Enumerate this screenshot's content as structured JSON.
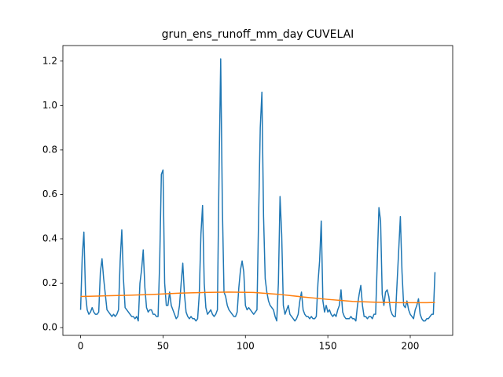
{
  "chart_data": {
    "type": "line",
    "title": "grun_ens_runoff_mm_day CUVELAI",
    "xlim": [
      -10.75,
      225.75
    ],
    "ylim": [
      -0.035,
      1.27
    ],
    "xticks": [
      0,
      50,
      100,
      150,
      200
    ],
    "yticks": [
      {
        "value": 0,
        "label": "0.0"
      },
      0.2,
      0.4,
      0.6,
      0.8,
      {
        "value": 1,
        "label": "1.0"
      },
      1.2
    ],
    "series": [
      {
        "color": "#1f77b4",
        "x": [
          0,
          1,
          2,
          3,
          4,
          5,
          6,
          7,
          8,
          9,
          10,
          11,
          12,
          13,
          14,
          15,
          16,
          17,
          18,
          19,
          20,
          21,
          22,
          23,
          24,
          25,
          26,
          27,
          28,
          29,
          30,
          31,
          32,
          33,
          34,
          35,
          36,
          37,
          38,
          39,
          40,
          41,
          42,
          43,
          44,
          45,
          46,
          47,
          48,
          49,
          50,
          51,
          52,
          53,
          54,
          55,
          56,
          57,
          58,
          59,
          60,
          61,
          62,
          63,
          64,
          65,
          66,
          67,
          68,
          69,
          70,
          71,
          72,
          73,
          74,
          75,
          76,
          77,
          78,
          79,
          80,
          81,
          82,
          83,
          84,
          85,
          86,
          87,
          88,
          89,
          90,
          91,
          92,
          93,
          94,
          95,
          96,
          97,
          98,
          99,
          100,
          101,
          102,
          103,
          104,
          105,
          106,
          107,
          108,
          109,
          110,
          111,
          112,
          113,
          114,
          115,
          116,
          117,
          118,
          119,
          120,
          121,
          122,
          123,
          124,
          125,
          126,
          127,
          128,
          129,
          130,
          131,
          132,
          133,
          134,
          135,
          136,
          137,
          138,
          139,
          140,
          141,
          142,
          143,
          144,
          145,
          146,
          147,
          148,
          149,
          150,
          151,
          152,
          153,
          154,
          155,
          156,
          157,
          158,
          159,
          160,
          161,
          162,
          163,
          164,
          165,
          166,
          167,
          168,
          169,
          170,
          171,
          172,
          173,
          174,
          175,
          176,
          177,
          178,
          179,
          180,
          181,
          182,
          183,
          184,
          185,
          186,
          187,
          188,
          189,
          190,
          191,
          192,
          193,
          194,
          195,
          196,
          197,
          198,
          199,
          200,
          201,
          202,
          203,
          204,
          205,
          206,
          207,
          208,
          209,
          210,
          211,
          212,
          213,
          214,
          215
        ],
        "values": [
          0.08,
          0.32,
          0.43,
          0.15,
          0.08,
          0.06,
          0.07,
          0.09,
          0.07,
          0.06,
          0.06,
          0.07,
          0.25,
          0.31,
          0.22,
          0.15,
          0.08,
          0.07,
          0.06,
          0.05,
          0.06,
          0.05,
          0.06,
          0.08,
          0.3,
          0.44,
          0.22,
          0.09,
          0.08,
          0.07,
          0.06,
          0.05,
          0.05,
          0.04,
          0.05,
          0.03,
          0.2,
          0.26,
          0.35,
          0.18,
          0.09,
          0.07,
          0.08,
          0.08,
          0.06,
          0.06,
          0.05,
          0.05,
          0.3,
          0.69,
          0.71,
          0.2,
          0.1,
          0.1,
          0.16,
          0.1,
          0.08,
          0.06,
          0.04,
          0.05,
          0.1,
          0.2,
          0.29,
          0.15,
          0.07,
          0.05,
          0.04,
          0.05,
          0.04,
          0.04,
          0.03,
          0.04,
          0.15,
          0.42,
          0.55,
          0.2,
          0.09,
          0.06,
          0.07,
          0.08,
          0.06,
          0.05,
          0.06,
          0.08,
          0.7,
          1.21,
          0.55,
          0.16,
          0.14,
          0.1,
          0.08,
          0.07,
          0.06,
          0.05,
          0.05,
          0.07,
          0.18,
          0.26,
          0.3,
          0.25,
          0.1,
          0.08,
          0.09,
          0.08,
          0.07,
          0.06,
          0.07,
          0.08,
          0.5,
          0.9,
          1.06,
          0.5,
          0.22,
          0.16,
          0.12,
          0.1,
          0.09,
          0.08,
          0.05,
          0.03,
          0.2,
          0.59,
          0.42,
          0.1,
          0.06,
          0.08,
          0.1,
          0.06,
          0.05,
          0.04,
          0.03,
          0.04,
          0.06,
          0.12,
          0.16,
          0.08,
          0.06,
          0.05,
          0.05,
          0.04,
          0.05,
          0.04,
          0.04,
          0.05,
          0.2,
          0.3,
          0.48,
          0.12,
          0.07,
          0.1,
          0.07,
          0.08,
          0.06,
          0.05,
          0.06,
          0.05,
          0.08,
          0.1,
          0.17,
          0.07,
          0.05,
          0.04,
          0.04,
          0.04,
          0.05,
          0.04,
          0.04,
          0.03,
          0.1,
          0.15,
          0.19,
          0.1,
          0.05,
          0.05,
          0.04,
          0.05,
          0.05,
          0.04,
          0.06,
          0.06,
          0.3,
          0.54,
          0.48,
          0.15,
          0.1,
          0.16,
          0.17,
          0.14,
          0.08,
          0.06,
          0.05,
          0.05,
          0.2,
          0.35,
          0.5,
          0.25,
          0.1,
          0.09,
          0.12,
          0.08,
          0.06,
          0.05,
          0.04,
          0.08,
          0.1,
          0.13,
          0.06,
          0.04,
          0.03,
          0.03,
          0.04,
          0.04,
          0.05,
          0.06,
          0.06,
          0.25
        ]
      },
      {
        "color": "#ff7f0e",
        "x": [
          0,
          15,
          30,
          45,
          60,
          75,
          90,
          105,
          120,
          135,
          150,
          165,
          180,
          195,
          210,
          215
        ],
        "values": [
          0.14,
          0.143,
          0.146,
          0.15,
          0.155,
          0.158,
          0.16,
          0.158,
          0.15,
          0.138,
          0.127,
          0.118,
          0.114,
          0.112,
          0.112,
          0.113
        ]
      }
    ]
  }
}
